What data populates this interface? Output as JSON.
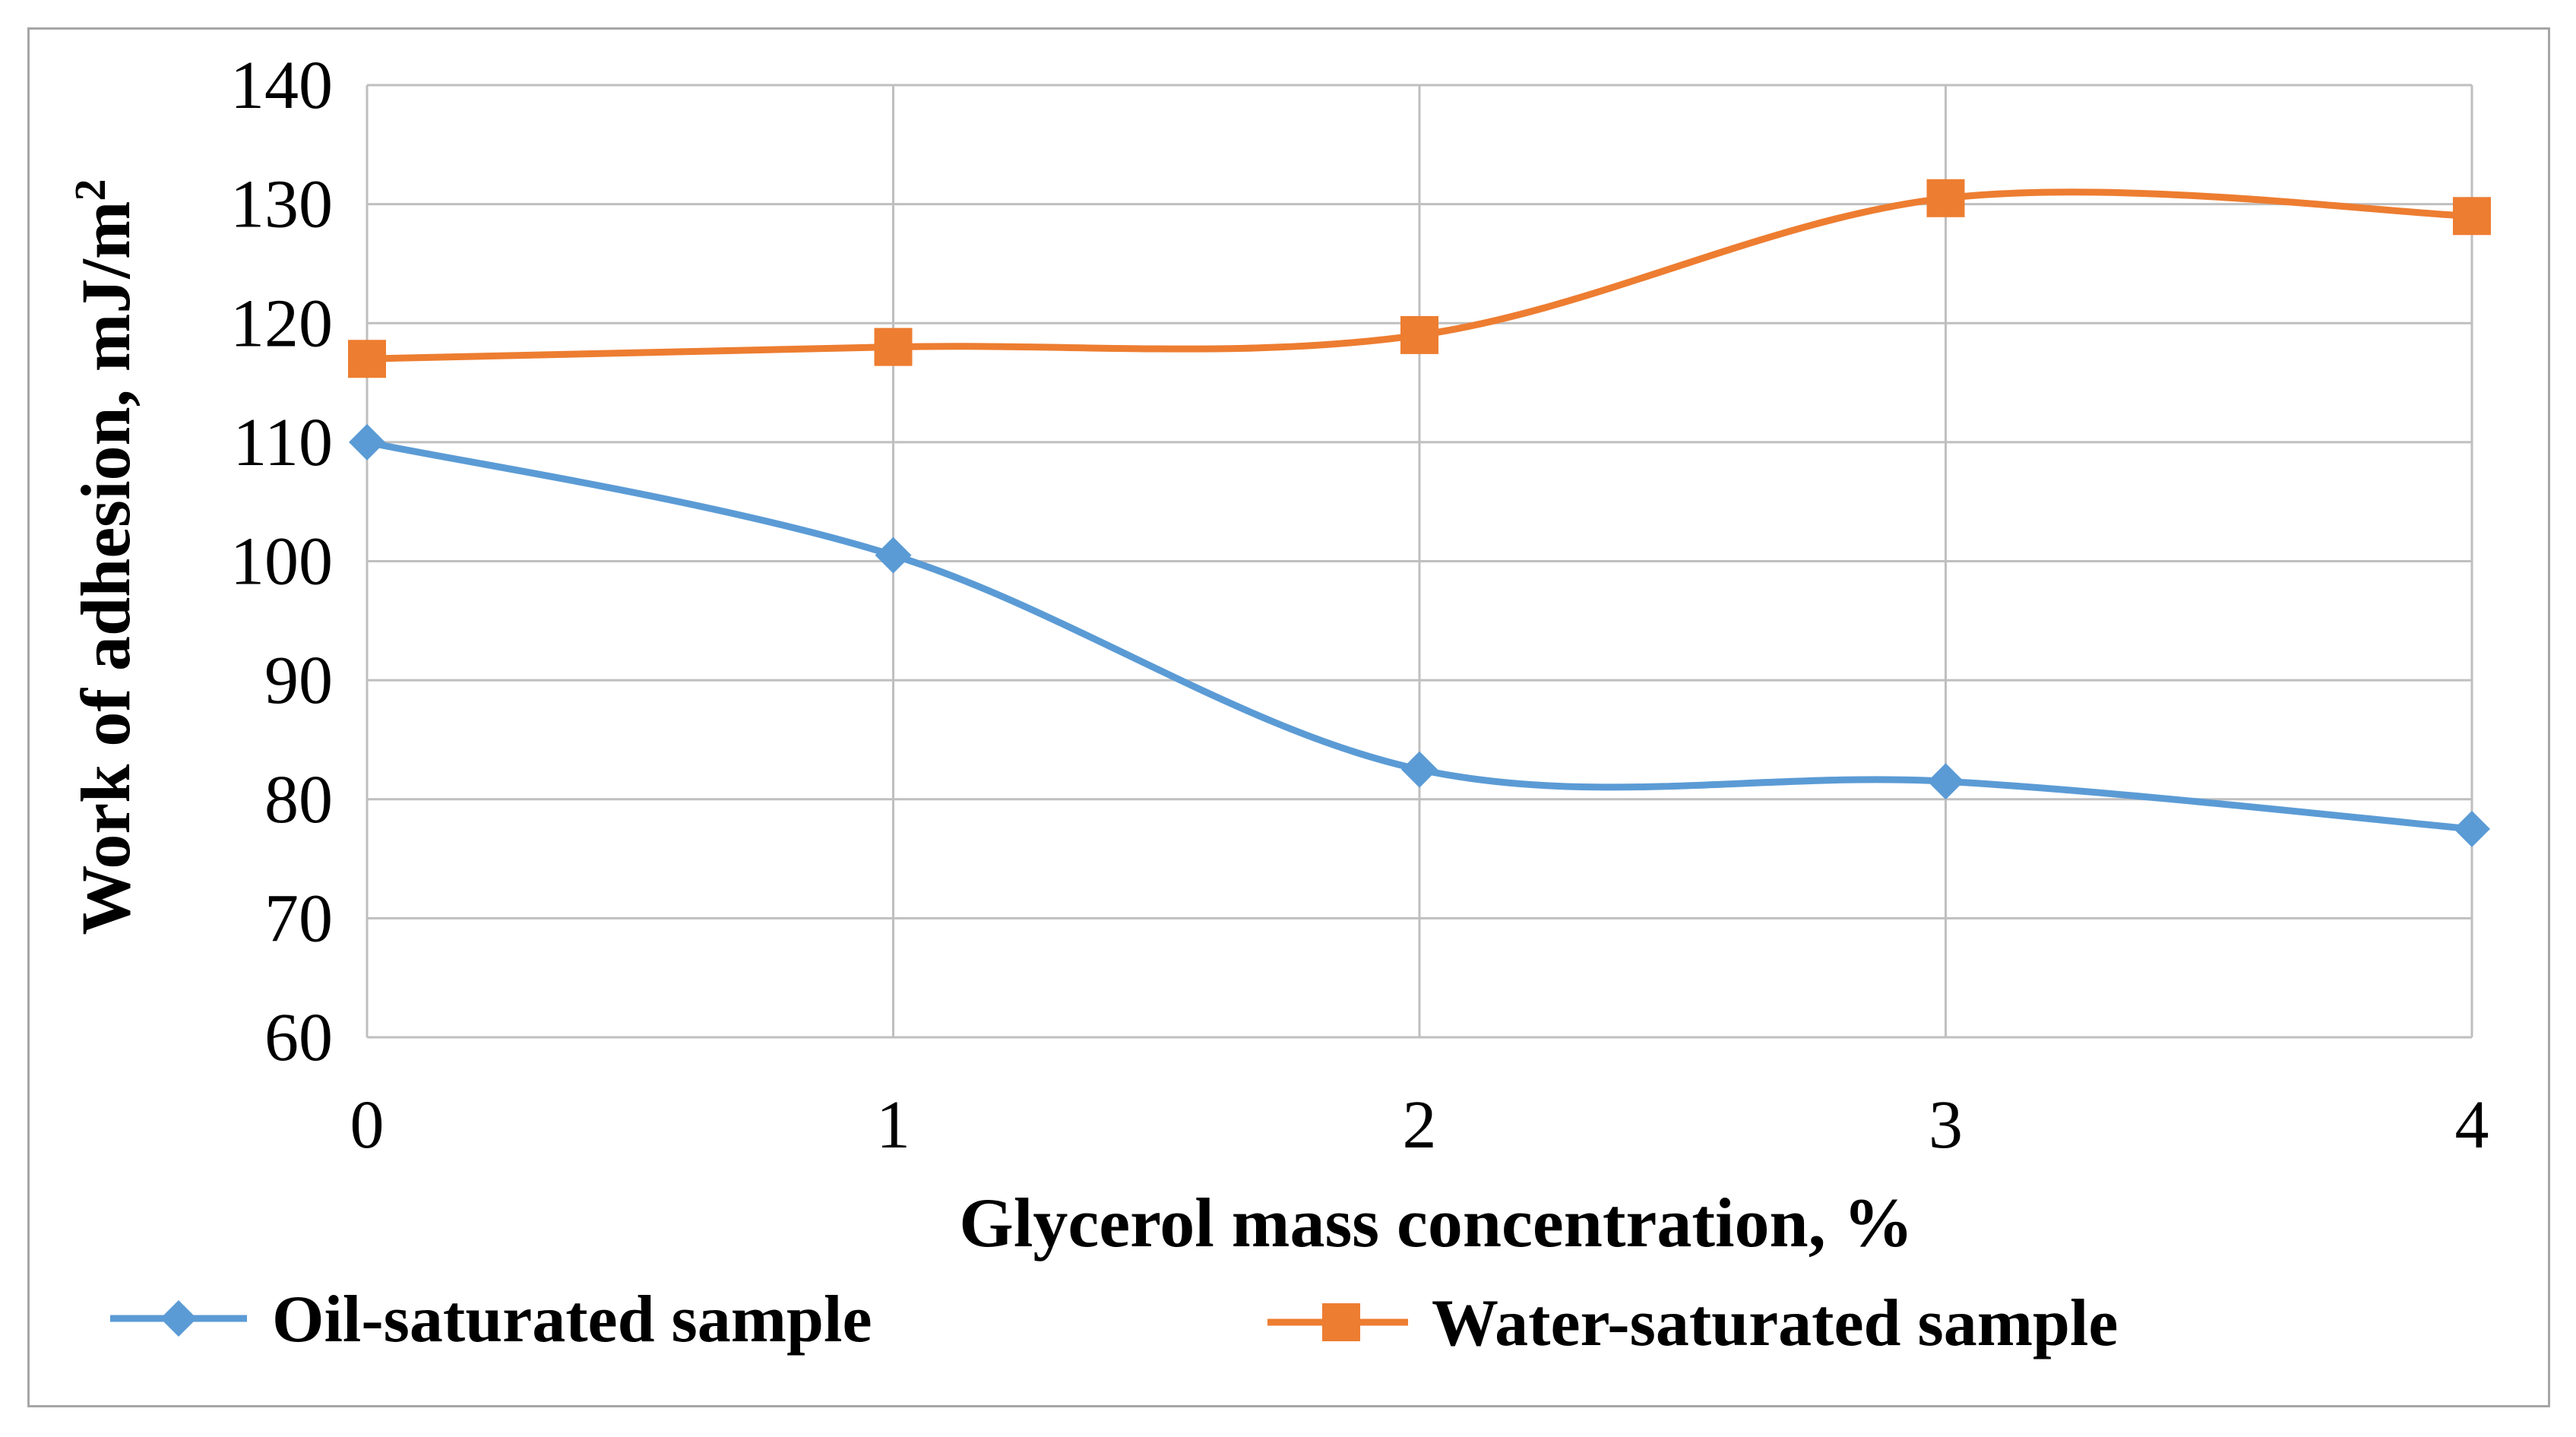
{
  "chart_data": {
    "type": "line",
    "title": "",
    "xlabel": "Glycerol mass concentration, %",
    "ylabel": "Work of adhesion, mJ/m",
    "ylabel_superscript": "2",
    "x": [
      0,
      1,
      2,
      3,
      4
    ],
    "x_tick_labels": [
      "0",
      "1",
      "2",
      "3",
      "4"
    ],
    "xlim": [
      0,
      4
    ],
    "ylim": [
      60,
      140
    ],
    "y_ticks": [
      60,
      70,
      80,
      90,
      100,
      110,
      120,
      130,
      140
    ],
    "y_tick_labels": [
      "60",
      "70",
      "80",
      "90",
      "100",
      "110",
      "120",
      "130",
      "140"
    ],
    "grid": true,
    "legend_position": "bottom",
    "series": [
      {
        "name": "Oil-saturated sample",
        "values": [
          110,
          100.5,
          82.5,
          81.5,
          77.5
        ],
        "color": "#5b9bd5",
        "marker": "diamond"
      },
      {
        "name": "Water-saturated sample",
        "values": [
          117,
          118,
          119,
          130.5,
          129
        ],
        "color": "#ed7d31",
        "marker": "square"
      }
    ]
  }
}
